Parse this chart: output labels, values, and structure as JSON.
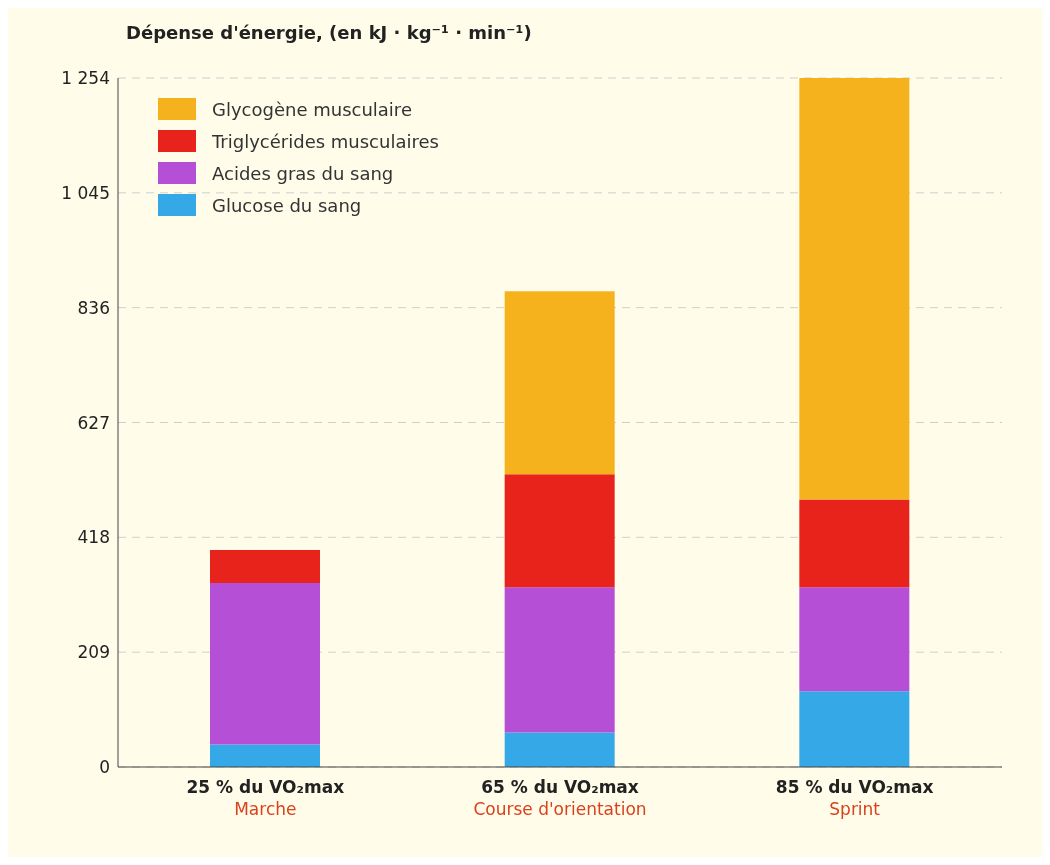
{
  "chart_data": {
    "type": "bar",
    "stacked": true,
    "ylabel": "Dépense d'énergie, (en kJ · kg⁻¹ · min⁻¹)",
    "categories": [
      "25 % du VO₂max\nMarche",
      "65 % du VO₂max\nCourse d'orientation",
      "85 % du VO₂max\nSprint"
    ],
    "series": [
      {
        "name": "Glucose du sang",
        "color": "#35a9e8",
        "values": [
          41,
          63,
          138
        ]
      },
      {
        "name": "Acides gras du sang",
        "color": "#b44fd6",
        "values": [
          294,
          264,
          189
        ]
      },
      {
        "name": "Triglycérides musculaires",
        "color": "#e8231c",
        "values": [
          60,
          206,
          160
        ]
      },
      {
        "name": "Glycogène musculaire",
        "color": "#f5b21c",
        "values": [
          0,
          333,
          767
        ]
      }
    ],
    "ylim": [
      0,
      1254
    ],
    "yticks": [
      0,
      209,
      418,
      627,
      836,
      {
        "value": 1045,
        "label": "1 045"
      },
      {
        "value": 1254,
        "label": "1 254"
      }
    ],
    "grid": "y",
    "legend": "top left"
  }
}
